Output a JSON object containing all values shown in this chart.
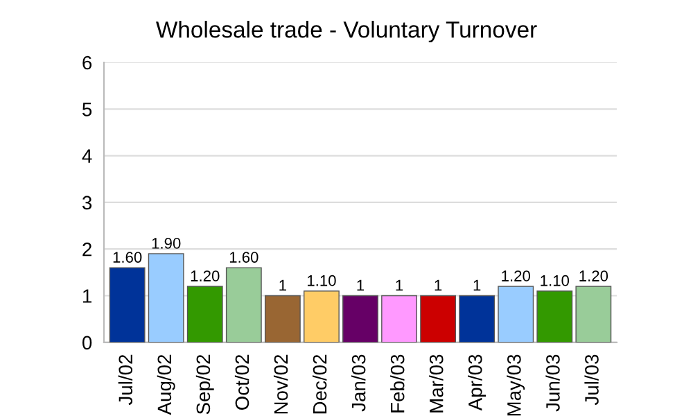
{
  "chart_data": {
    "type": "bar",
    "title": "Wholesale trade - Voluntary Turnover",
    "categories": [
      "Jul/02",
      "Aug/02",
      "Sep/02",
      "Oct/02",
      "Nov/02",
      "Dec/02",
      "Jan/03",
      "Feb/03",
      "Mar/03",
      "Apr/03",
      "May/03",
      "Jun/03",
      "Jul/03"
    ],
    "values": [
      1.6,
      1.9,
      1.2,
      1.6,
      1,
      1.1,
      1,
      1,
      1,
      1,
      1.2,
      1.1,
      1.2
    ],
    "value_labels": [
      "1.60",
      "1.90",
      "1.20",
      "1.60",
      "1",
      "1.10",
      "1",
      "1",
      "1",
      "1",
      "1.20",
      "1.10",
      "1.20"
    ],
    "colors": [
      "#003399",
      "#99ccff",
      "#339900",
      "#99cc99",
      "#996633",
      "#ffcc66",
      "#660066",
      "#ff99ff",
      "#cc0000",
      "#003399",
      "#99ccff",
      "#339900",
      "#99cc99"
    ],
    "ylim": [
      0,
      6
    ],
    "yticks": [
      0,
      1,
      2,
      3,
      4,
      5,
      6
    ],
    "grid": "y",
    "legend": false
  }
}
